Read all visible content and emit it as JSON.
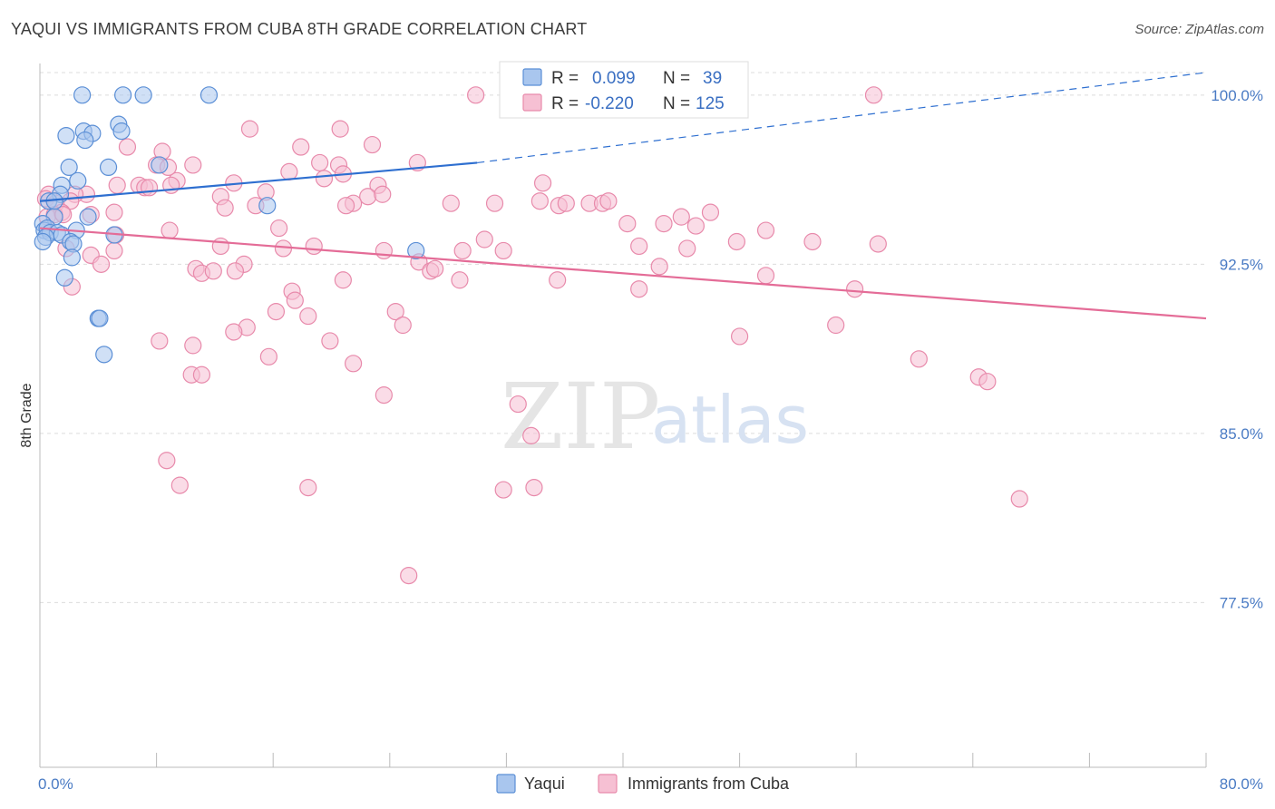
{
  "title": "YAQUI VS IMMIGRANTS FROM CUBA 8TH GRADE CORRELATION CHART",
  "source": "Source: ZipAtlas.com",
  "watermark": {
    "zip": "ZIP",
    "atlas": "atlas"
  },
  "colors": {
    "yaqui_fill": "#a9c6ee",
    "yaqui_stroke": "#5b8fd6",
    "yaqui_line": "#2e6fd0",
    "cuba_fill": "#f6c0d3",
    "cuba_stroke": "#e88aab",
    "cuba_line": "#e46c97",
    "grid": "#dcdcdc",
    "tick_text": "#4a7bc4"
  },
  "stats": [
    {
      "r_label": "R =",
      "r": "0.099",
      "n_label": "N =",
      "n": "39"
    },
    {
      "r_label": "R =",
      "r": "-0.220",
      "n_label": "N =",
      "n": "125"
    }
  ],
  "chart_data": {
    "type": "scatter",
    "title": "YAQUI VS IMMIGRANTS FROM CUBA 8TH GRADE CORRELATION CHART",
    "xlabel": "",
    "ylabel": "8th Grade",
    "xlim": [
      0,
      80
    ],
    "ylim": [
      70.2,
      101.4
    ],
    "x_tick_labels": [
      "0.0%",
      "80.0%"
    ],
    "y_ticks": [
      {
        "value": 100.0,
        "label": "100.0%"
      },
      {
        "value": 92.5,
        "label": "92.5%"
      },
      {
        "value": 85.0,
        "label": "85.0%"
      },
      {
        "value": 77.5,
        "label": "77.5%"
      }
    ],
    "grid": true,
    "legend_position": "bottom-center",
    "series": [
      {
        "name": "Yaqui",
        "trend": {
          "x0": 0,
          "y0": 95.3,
          "x1": 30,
          "y1": 97.0,
          "dashed_to_x": 80,
          "dashed_to_y": 101.0
        },
        "points": [
          [
            2.9,
            100.0
          ],
          [
            5.7,
            100.0
          ],
          [
            7.1,
            100.0
          ],
          [
            11.6,
            100.0
          ],
          [
            5.4,
            98.7
          ],
          [
            3.0,
            98.4
          ],
          [
            3.6,
            98.3
          ],
          [
            1.8,
            98.2
          ],
          [
            5.6,
            98.4
          ],
          [
            3.1,
            98.0
          ],
          [
            2.0,
            96.8
          ],
          [
            4.7,
            96.8
          ],
          [
            8.2,
            96.9
          ],
          [
            1.5,
            96.0
          ],
          [
            2.6,
            96.2
          ],
          [
            1.4,
            95.6
          ],
          [
            0.6,
            95.3
          ],
          [
            15.6,
            95.1
          ],
          [
            1.0,
            94.6
          ],
          [
            3.3,
            94.6
          ],
          [
            0.2,
            94.3
          ],
          [
            0.3,
            94.0
          ],
          [
            0.5,
            94.1
          ],
          [
            0.7,
            93.9
          ],
          [
            1.2,
            93.9
          ],
          [
            1.5,
            93.8
          ],
          [
            2.5,
            94.0
          ],
          [
            0.4,
            93.7
          ],
          [
            0.2,
            93.5
          ],
          [
            2.1,
            93.5
          ],
          [
            2.3,
            93.4
          ],
          [
            5.1,
            93.8
          ],
          [
            25.8,
            93.1
          ],
          [
            2.2,
            92.8
          ],
          [
            1.7,
            91.9
          ],
          [
            4.0,
            90.1
          ],
          [
            4.1,
            90.1
          ],
          [
            4.4,
            88.5
          ],
          [
            1.0,
            95.3
          ]
        ]
      },
      {
        "name": "Immigrants from Cuba",
        "trend": {
          "x0": 0,
          "y0": 94.1,
          "x1": 80,
          "y1": 90.1
        },
        "points": [
          [
            29.9,
            100.0
          ],
          [
            57.2,
            100.0
          ],
          [
            14.4,
            98.5
          ],
          [
            20.6,
            98.5
          ],
          [
            22.8,
            97.8
          ],
          [
            6.0,
            97.7
          ],
          [
            8.4,
            97.5
          ],
          [
            17.9,
            97.7
          ],
          [
            25.9,
            97.0
          ],
          [
            19.2,
            97.0
          ],
          [
            20.5,
            96.9
          ],
          [
            10.5,
            96.9
          ],
          [
            8.0,
            96.9
          ],
          [
            17.1,
            96.6
          ],
          [
            20.8,
            96.5
          ],
          [
            9.4,
            96.2
          ],
          [
            19.5,
            96.3
          ],
          [
            13.3,
            96.1
          ],
          [
            34.5,
            96.1
          ],
          [
            5.3,
            96.0
          ],
          [
            6.8,
            96.0
          ],
          [
            7.2,
            95.9
          ],
          [
            9.0,
            96.0
          ],
          [
            7.5,
            95.9
          ],
          [
            23.2,
            96.0
          ],
          [
            3.2,
            95.6
          ],
          [
            2.4,
            95.6
          ],
          [
            0.6,
            95.6
          ],
          [
            15.5,
            95.7
          ],
          [
            0.4,
            95.4
          ],
          [
            2.1,
            95.3
          ],
          [
            12.4,
            95.5
          ],
          [
            22.5,
            95.5
          ],
          [
            23.5,
            95.6
          ],
          [
            1.1,
            95.2
          ],
          [
            34.3,
            95.3
          ],
          [
            14.8,
            95.1
          ],
          [
            21.5,
            95.2
          ],
          [
            28.2,
            95.2
          ],
          [
            31.2,
            95.2
          ],
          [
            35.6,
            95.1
          ],
          [
            37.7,
            95.2
          ],
          [
            38.6,
            95.2
          ],
          [
            39.0,
            95.3
          ],
          [
            5.1,
            94.8
          ],
          [
            3.5,
            94.7
          ],
          [
            1.5,
            94.8
          ],
          [
            0.5,
            94.6
          ],
          [
            1.0,
            94.7
          ],
          [
            46.0,
            94.8
          ],
          [
            44.0,
            94.6
          ],
          [
            42.8,
            94.3
          ],
          [
            45.0,
            94.2
          ],
          [
            40.3,
            94.3
          ],
          [
            8.9,
            94.0
          ],
          [
            5.2,
            93.8
          ],
          [
            16.4,
            94.1
          ],
          [
            49.8,
            94.0
          ],
          [
            41.1,
            93.3
          ],
          [
            44.4,
            93.2
          ],
          [
            29.0,
            93.1
          ],
          [
            30.5,
            93.6
          ],
          [
            31.8,
            93.1
          ],
          [
            47.8,
            93.5
          ],
          [
            53.0,
            93.5
          ],
          [
            57.5,
            93.4
          ],
          [
            1.8,
            93.2
          ],
          [
            3.5,
            92.9
          ],
          [
            5.1,
            93.1
          ],
          [
            12.4,
            93.3
          ],
          [
            18.8,
            93.3
          ],
          [
            16.7,
            93.2
          ],
          [
            23.6,
            93.1
          ],
          [
            26.0,
            92.6
          ],
          [
            14.0,
            92.5
          ],
          [
            10.7,
            92.3
          ],
          [
            4.2,
            92.5
          ],
          [
            11.1,
            92.1
          ],
          [
            11.9,
            92.2
          ],
          [
            13.4,
            92.2
          ],
          [
            26.8,
            92.2
          ],
          [
            27.1,
            92.3
          ],
          [
            28.8,
            91.8
          ],
          [
            42.5,
            92.4
          ],
          [
            49.8,
            92.0
          ],
          [
            35.5,
            91.8
          ],
          [
            20.8,
            91.8
          ],
          [
            2.2,
            91.5
          ],
          [
            17.3,
            91.3
          ],
          [
            41.1,
            91.4
          ],
          [
            55.9,
            91.4
          ],
          [
            17.5,
            90.9
          ],
          [
            16.2,
            90.4
          ],
          [
            24.4,
            90.4
          ],
          [
            18.4,
            90.2
          ],
          [
            14.2,
            89.7
          ],
          [
            13.3,
            89.5
          ],
          [
            24.9,
            89.8
          ],
          [
            54.6,
            89.8
          ],
          [
            8.2,
            89.1
          ],
          [
            10.5,
            88.9
          ],
          [
            15.7,
            88.4
          ],
          [
            19.9,
            89.1
          ],
          [
            21.5,
            88.1
          ],
          [
            23.6,
            86.7
          ],
          [
            48.0,
            89.3
          ],
          [
            60.3,
            88.3
          ],
          [
            64.4,
            87.5
          ],
          [
            65.0,
            87.3
          ],
          [
            10.4,
            87.6
          ],
          [
            11.1,
            87.6
          ],
          [
            32.8,
            86.3
          ],
          [
            33.7,
            84.9
          ],
          [
            8.7,
            83.8
          ],
          [
            9.6,
            82.7
          ],
          [
            18.4,
            82.6
          ],
          [
            31.8,
            82.5
          ],
          [
            33.9,
            82.6
          ],
          [
            67.2,
            82.1
          ],
          [
            25.3,
            78.7
          ],
          [
            8.8,
            96.8
          ],
          [
            12.7,
            95.0
          ],
          [
            36.1,
            95.2
          ],
          [
            1.6,
            94.7
          ],
          [
            21.0,
            95.1
          ]
        ]
      }
    ]
  },
  "legend": [
    {
      "key": "yaqui",
      "label": "Yaqui"
    },
    {
      "key": "cuba",
      "label": "Immigrants from Cuba"
    }
  ]
}
